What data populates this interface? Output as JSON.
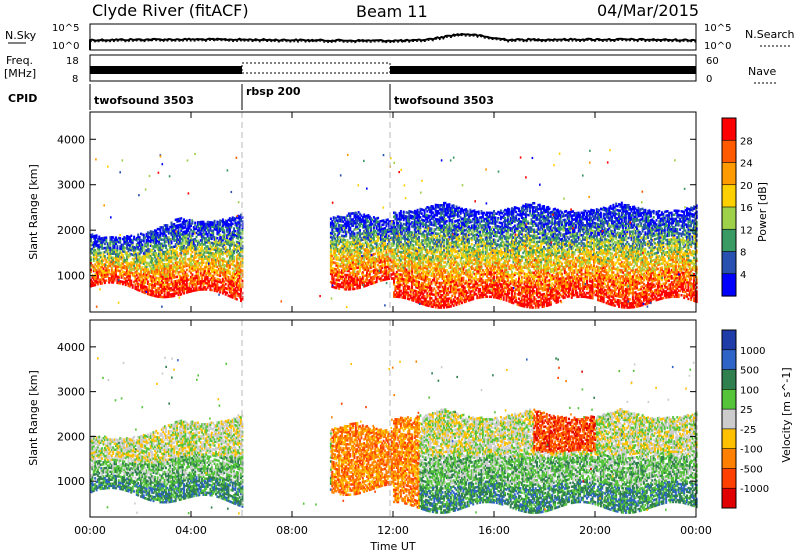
{
  "header": {
    "station": "Clyde River (fitACF)",
    "beam": "Beam 11",
    "date": "04/Mar/2015"
  },
  "strips": {
    "nsky_label": "N.Sky",
    "nsky_ticks": [
      "10^5",
      "10^0"
    ],
    "nsearch_label": "N.Search",
    "nsearch_ticks": [
      "10^5",
      "10^0"
    ],
    "freq_label_1": "Freq.",
    "freq_label_2": "[MHz]",
    "freq_ticks": [
      "18",
      "8"
    ],
    "nave_label": "Nave",
    "nave_ticks": [
      "60",
      "0"
    ],
    "cpid_label": "CPID",
    "cpid_segments": [
      {
        "label": "twofsound 3503",
        "start": 0,
        "end": 6
      },
      {
        "label": "rbsp 200",
        "start": 6,
        "end": 12
      },
      {
        "label": "twofsound 3503",
        "start": 12,
        "end": 24
      }
    ]
  },
  "chart_data": [
    {
      "type": "heatmap",
      "quantity": "power",
      "ylabel": "Slant Range [km]",
      "yticks": [
        "1000",
        "2000",
        "3000",
        "4000"
      ],
      "ylim": [
        200,
        4600
      ],
      "xlim": [
        0,
        24
      ],
      "colorbar_label": "Power [dB]",
      "colorbar_ticks": [
        "28",
        "24",
        "20",
        "16",
        "12",
        "8",
        "4"
      ],
      "colorbar_colors": [
        "#ff0000",
        "#ff5a00",
        "#ff9a00",
        "#ffd000",
        "#9fd04a",
        "#3a9a64",
        "#2850b0",
        "#0000ff"
      ],
      "echo_regions": [
        {
          "t0": 0.0,
          "t1": 6.0,
          "r0": 500,
          "r1": 2500
        },
        {
          "t0": 9.5,
          "t1": 12.0,
          "r0": 800,
          "r1": 2400
        },
        {
          "t0": 12.0,
          "t1": 24.0,
          "r0": 400,
          "r1": 2600
        }
      ]
    },
    {
      "type": "heatmap",
      "quantity": "velocity",
      "ylabel": "Slant Range [km]",
      "yticks": [
        "1000",
        "2000",
        "3000",
        "4000"
      ],
      "ylim": [
        200,
        4600
      ],
      "xlim": [
        0,
        24
      ],
      "xticks": [
        "00:00",
        "04:00",
        "08:00",
        "12:00",
        "16:00",
        "20:00",
        "00:00"
      ],
      "xlabel": "Time UT",
      "colorbar_label": "Velocity [m s^-1]",
      "colorbar_ticks": [
        "1000",
        "500",
        "100",
        "25",
        "-25",
        "-100",
        "-500",
        "-1000"
      ],
      "colorbar_colors": [
        "#1f3ca8",
        "#2e64c8",
        "#2f7f4f",
        "#55c43b",
        "#cccccc",
        "#ffc000",
        "#ff8000",
        "#ff4000",
        "#e00000"
      ],
      "echo_regions": [
        {
          "t0": 0.0,
          "t1": 6.0,
          "r0": 500,
          "r1": 2600
        },
        {
          "t0": 9.5,
          "t1": 12.0,
          "r0": 800,
          "r1": 2300
        },
        {
          "t0": 12.0,
          "t1": 24.0,
          "r0": 400,
          "r1": 2600
        }
      ]
    }
  ]
}
